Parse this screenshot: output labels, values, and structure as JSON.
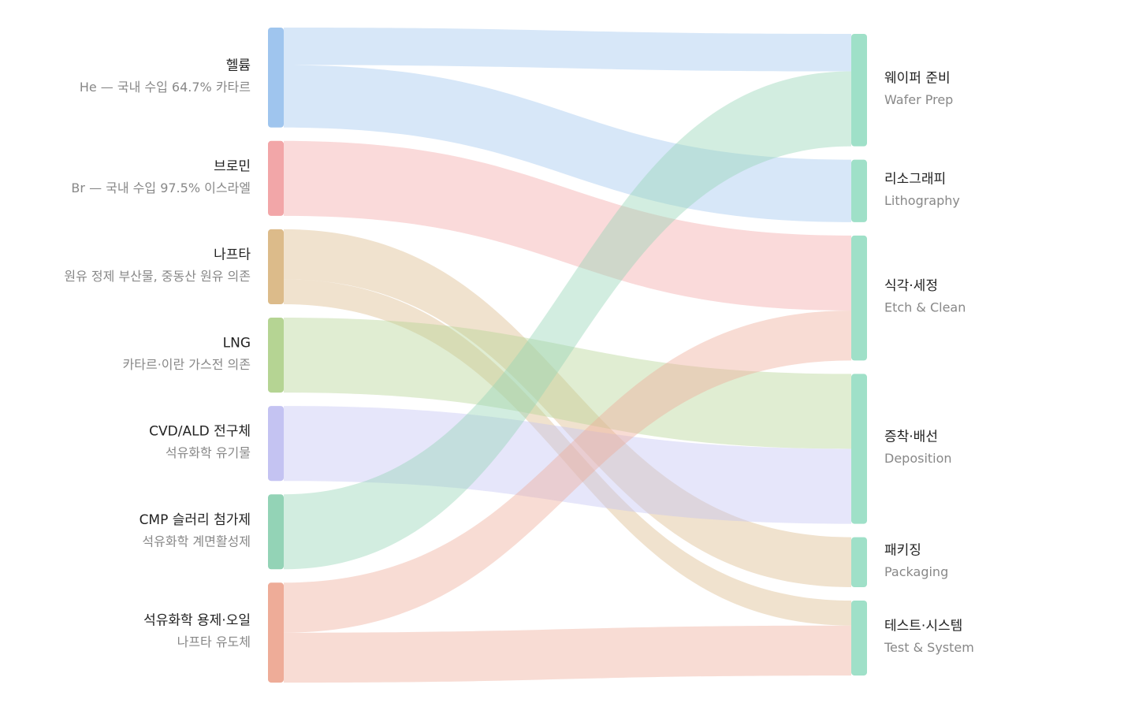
{
  "chart_data": {
    "type": "sankey",
    "sources": [
      {
        "name": "헬륨",
        "sublabel": "He — 국내 수입 64.7% 카타르",
        "color": "#9fc5ee"
      },
      {
        "name": "브로민",
        "sublabel": "Br — 국내 수입 97.5% 이스라엘",
        "color": "#f2a6a8"
      },
      {
        "name": "나프타",
        "sublabel": "원유 정제 부산물, 중동산 원유 의존",
        "color": "#dcbb8a"
      },
      {
        "name": "LNG",
        "sublabel": "카타르·이란 가스전 의존",
        "color": "#b5d493"
      },
      {
        "name": "CVD/ALD 전구체",
        "sublabel": "석유화학 유기물",
        "color": "#c4c3f2"
      },
      {
        "name": "CMP 슬러리 첨가제",
        "sublabel": "석유화학 계면활성제",
        "color": "#93d3b6"
      },
      {
        "name": "석유화학 용제·오일",
        "sublabel": "나프타 유도체",
        "color": "#eeac98"
      }
    ],
    "targets": [
      {
        "name": "웨이퍼 준비",
        "sublabel": "Wafer Prep",
        "color": "#9fe0c8"
      },
      {
        "name": "리소그래피",
        "sublabel": "Lithography",
        "color": "#9fe0c8"
      },
      {
        "name": "식각·세정",
        "sublabel": "Etch & Clean",
        "color": "#9fe0c8"
      },
      {
        "name": "증착·배선",
        "sublabel": "Deposition",
        "color": "#9fe0c8"
      },
      {
        "name": "패키징",
        "sublabel": "Packaging",
        "color": "#9fe0c8"
      },
      {
        "name": "테스트·시스템",
        "sublabel": "Test & System",
        "color": "#9fe0c8"
      }
    ],
    "links": [
      {
        "source": 0,
        "target": 0,
        "value": 1.5
      },
      {
        "source": 0,
        "target": 1,
        "value": 2.5
      },
      {
        "source": 1,
        "target": 2,
        "value": 3
      },
      {
        "source": 2,
        "target": 4,
        "value": 2
      },
      {
        "source": 2,
        "target": 5,
        "value": 1
      },
      {
        "source": 3,
        "target": 3,
        "value": 3
      },
      {
        "source": 4,
        "target": 3,
        "value": 3
      },
      {
        "source": 5,
        "target": 0,
        "value": 3
      },
      {
        "source": 6,
        "target": 2,
        "value": 2
      },
      {
        "source": 6,
        "target": 5,
        "value": 2
      }
    ]
  }
}
